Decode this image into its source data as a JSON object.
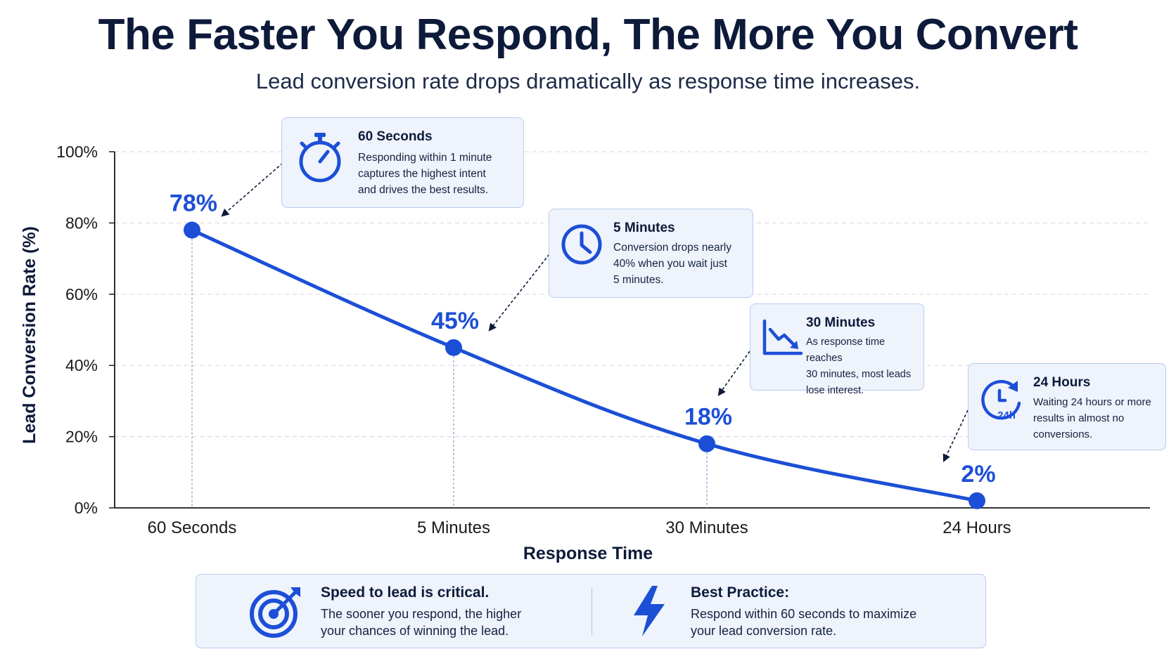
{
  "header": {
    "title": "The Faster You Respond, The More You Convert",
    "subtitle": "Lead conversion rate drops dramatically as response time increases."
  },
  "colors": {
    "accent": "#1c4fd6",
    "title": "#0d1a3a",
    "callout_bg": "#eef3fc",
    "callout_border": "#b9cdef",
    "grid": "#d9dde4"
  },
  "chart_data": {
    "type": "line",
    "title": "The Faster You Respond, The More You Convert",
    "subtitle": "Lead conversion rate drops dramatically as response time increases.",
    "xlabel": "Response Time",
    "ylabel": "Lead Conversion Rate (%)",
    "categories": [
      "60 Seconds",
      "5 Minutes",
      "30 Minutes",
      "24 Hours"
    ],
    "series": [
      {
        "values": [
          78,
          45,
          18,
          2
        ]
      }
    ],
    "data_labels": [
      "78%",
      "45%",
      "18%",
      "2%"
    ],
    "ylim": [
      0,
      100
    ],
    "yticks": [
      0,
      20,
      40,
      60,
      80,
      100
    ],
    "ytick_labels": [
      "0%",
      "20%",
      "40%",
      "60%",
      "80%",
      "100%"
    ],
    "grid": true,
    "legend": "none"
  },
  "callouts": [
    {
      "icon": "stopwatch-icon",
      "title": "60 Seconds",
      "lines": [
        "Responding within 1 minute",
        "captures the highest intent",
        "and drives the best results."
      ]
    },
    {
      "icon": "clock-icon",
      "title": "5 Minutes",
      "lines": [
        "Conversion drops nearly",
        "40% when you wait just",
        "5 minutes."
      ]
    },
    {
      "icon": "trend-down-icon",
      "title": "30 Minutes",
      "lines": [
        "As response time reaches",
        "30 minutes, most leads",
        "lose interest."
      ]
    },
    {
      "icon": "clock-24h-icon",
      "icon_text": "24h",
      "title": "24 Hours",
      "lines": [
        "Waiting 24 hours or more",
        "results in almost no",
        "conversions."
      ]
    }
  ],
  "footer": {
    "left": {
      "icon": "target-icon",
      "heading": "Speed to lead is critical.",
      "lines": [
        "The sooner you respond, the higher",
        "your chances of winning the lead."
      ]
    },
    "right": {
      "icon": "lightning-icon",
      "heading": "Best Practice:",
      "lines": [
        "Respond within 60 seconds to maximize",
        "your lead conversion rate."
      ]
    }
  }
}
